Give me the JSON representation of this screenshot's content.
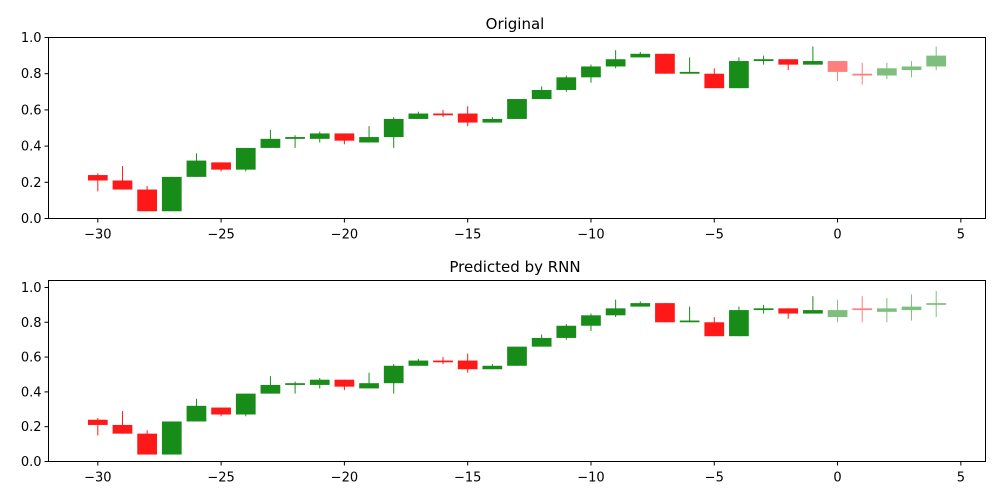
{
  "chart_data": [
    {
      "type": "candlestick",
      "title": "Original",
      "xlabel": "",
      "ylabel": "",
      "xlim": [
        -32,
        6
      ],
      "ylim": [
        0,
        1.0
      ],
      "xticks": [
        -30,
        -25,
        -20,
        -15,
        -10,
        -5,
        0,
        5
      ],
      "yticks": [
        0.0,
        0.2,
        0.4,
        0.6,
        0.8,
        1.0
      ],
      "xtick_labels": [
        "−30",
        "−25",
        "−20",
        "−15",
        "−10",
        "−5",
        "0",
        "5"
      ],
      "ytick_labels": [
        "0.0",
        "0.2",
        "0.4",
        "0.6",
        "0.8",
        "1.0"
      ],
      "grid": false,
      "colors": {
        "up": "#008000",
        "down": "#ff0000"
      },
      "candles": [
        {
          "x": -30,
          "open": 0.24,
          "close": 0.21,
          "high": 0.25,
          "low": 0.15,
          "alpha": 0.9
        },
        {
          "x": -29,
          "open": 0.21,
          "close": 0.16,
          "high": 0.29,
          "low": 0.16,
          "alpha": 0.9
        },
        {
          "x": -28,
          "open": 0.16,
          "close": 0.04,
          "high": 0.18,
          "low": 0.04,
          "alpha": 0.9
        },
        {
          "x": -27,
          "open": 0.04,
          "close": 0.23,
          "high": 0.23,
          "low": 0.04,
          "alpha": 0.9
        },
        {
          "x": -26,
          "open": 0.23,
          "close": 0.32,
          "high": 0.36,
          "low": 0.23,
          "alpha": 0.9
        },
        {
          "x": -25,
          "open": 0.31,
          "close": 0.27,
          "high": 0.31,
          "low": 0.26,
          "alpha": 0.9
        },
        {
          "x": -24,
          "open": 0.27,
          "close": 0.39,
          "high": 0.39,
          "low": 0.26,
          "alpha": 0.9
        },
        {
          "x": -23,
          "open": 0.39,
          "close": 0.44,
          "high": 0.49,
          "low": 0.39,
          "alpha": 0.9
        },
        {
          "x": -22,
          "open": 0.44,
          "close": 0.45,
          "high": 0.46,
          "low": 0.39,
          "alpha": 0.9
        },
        {
          "x": -21,
          "open": 0.44,
          "close": 0.47,
          "high": 0.48,
          "low": 0.42,
          "alpha": 0.9
        },
        {
          "x": -20,
          "open": 0.47,
          "close": 0.43,
          "high": 0.47,
          "low": 0.41,
          "alpha": 0.9
        },
        {
          "x": -19,
          "open": 0.42,
          "close": 0.45,
          "high": 0.51,
          "low": 0.42,
          "alpha": 0.9
        },
        {
          "x": -18,
          "open": 0.45,
          "close": 0.55,
          "high": 0.56,
          "low": 0.39,
          "alpha": 0.9
        },
        {
          "x": -17,
          "open": 0.55,
          "close": 0.58,
          "high": 0.59,
          "low": 0.55,
          "alpha": 0.9
        },
        {
          "x": -16,
          "open": 0.58,
          "close": 0.57,
          "high": 0.6,
          "low": 0.56,
          "alpha": 0.9
        },
        {
          "x": -15,
          "open": 0.58,
          "close": 0.53,
          "high": 0.62,
          "low": 0.51,
          "alpha": 0.9
        },
        {
          "x": -14,
          "open": 0.53,
          "close": 0.55,
          "high": 0.56,
          "low": 0.53,
          "alpha": 0.9
        },
        {
          "x": -13,
          "open": 0.55,
          "close": 0.66,
          "high": 0.66,
          "low": 0.55,
          "alpha": 0.9
        },
        {
          "x": -12,
          "open": 0.66,
          "close": 0.71,
          "high": 0.73,
          "low": 0.66,
          "alpha": 0.9
        },
        {
          "x": -11,
          "open": 0.71,
          "close": 0.78,
          "high": 0.79,
          "low": 0.7,
          "alpha": 0.9
        },
        {
          "x": -10,
          "open": 0.78,
          "close": 0.84,
          "high": 0.85,
          "low": 0.75,
          "alpha": 0.9
        },
        {
          "x": -9,
          "open": 0.84,
          "close": 0.88,
          "high": 0.93,
          "low": 0.83,
          "alpha": 0.9
        },
        {
          "x": -8,
          "open": 0.89,
          "close": 0.91,
          "high": 0.92,
          "low": 0.89,
          "alpha": 0.9
        },
        {
          "x": -7,
          "open": 0.91,
          "close": 0.8,
          "high": 0.91,
          "low": 0.8,
          "alpha": 0.9
        },
        {
          "x": -6,
          "open": 0.8,
          "close": 0.81,
          "high": 0.89,
          "low": 0.8,
          "alpha": 0.9
        },
        {
          "x": -5,
          "open": 0.8,
          "close": 0.72,
          "high": 0.83,
          "low": 0.72,
          "alpha": 0.9
        },
        {
          "x": -4,
          "open": 0.72,
          "close": 0.87,
          "high": 0.89,
          "low": 0.72,
          "alpha": 0.9
        },
        {
          "x": -3,
          "open": 0.87,
          "close": 0.88,
          "high": 0.9,
          "low": 0.85,
          "alpha": 0.9
        },
        {
          "x": -2,
          "open": 0.88,
          "close": 0.85,
          "high": 0.88,
          "low": 0.82,
          "alpha": 0.9
        },
        {
          "x": -1,
          "open": 0.85,
          "close": 0.87,
          "high": 0.95,
          "low": 0.85,
          "alpha": 0.9
        },
        {
          "x": 0,
          "open": 0.87,
          "close": 0.81,
          "high": 0.87,
          "low": 0.76,
          "alpha": 0.5
        },
        {
          "x": 1,
          "open": 0.8,
          "close": 0.79,
          "high": 0.86,
          "low": 0.74,
          "alpha": 0.5
        },
        {
          "x": 2,
          "open": 0.79,
          "close": 0.83,
          "high": 0.86,
          "low": 0.77,
          "alpha": 0.5
        },
        {
          "x": 3,
          "open": 0.82,
          "close": 0.84,
          "high": 0.87,
          "low": 0.78,
          "alpha": 0.5
        },
        {
          "x": 4,
          "open": 0.84,
          "close": 0.9,
          "high": 0.95,
          "low": 0.82,
          "alpha": 0.5
        }
      ]
    },
    {
      "type": "candlestick",
      "title": "Predicted by RNN",
      "xlabel": "",
      "ylabel": "",
      "xlim": [
        -32,
        6
      ],
      "ylim": [
        0,
        1.04
      ],
      "xticks": [
        -30,
        -25,
        -20,
        -15,
        -10,
        -5,
        0,
        5
      ],
      "yticks": [
        0.0,
        0.2,
        0.4,
        0.6,
        0.8,
        1.0
      ],
      "xtick_labels": [
        "−30",
        "−25",
        "−20",
        "−15",
        "−10",
        "−5",
        "0",
        "5"
      ],
      "ytick_labels": [
        "0.0",
        "0.2",
        "0.4",
        "0.6",
        "0.8",
        "1.0"
      ],
      "grid": false,
      "colors": {
        "up": "#008000",
        "down": "#ff0000"
      },
      "candles": [
        {
          "x": -30,
          "open": 0.24,
          "close": 0.21,
          "high": 0.25,
          "low": 0.15,
          "alpha": 0.9
        },
        {
          "x": -29,
          "open": 0.21,
          "close": 0.16,
          "high": 0.29,
          "low": 0.16,
          "alpha": 0.9
        },
        {
          "x": -28,
          "open": 0.16,
          "close": 0.04,
          "high": 0.18,
          "low": 0.04,
          "alpha": 0.9
        },
        {
          "x": -27,
          "open": 0.04,
          "close": 0.23,
          "high": 0.23,
          "low": 0.04,
          "alpha": 0.9
        },
        {
          "x": -26,
          "open": 0.23,
          "close": 0.32,
          "high": 0.36,
          "low": 0.23,
          "alpha": 0.9
        },
        {
          "x": -25,
          "open": 0.31,
          "close": 0.27,
          "high": 0.31,
          "low": 0.26,
          "alpha": 0.9
        },
        {
          "x": -24,
          "open": 0.27,
          "close": 0.39,
          "high": 0.39,
          "low": 0.26,
          "alpha": 0.9
        },
        {
          "x": -23,
          "open": 0.39,
          "close": 0.44,
          "high": 0.49,
          "low": 0.39,
          "alpha": 0.9
        },
        {
          "x": -22,
          "open": 0.44,
          "close": 0.45,
          "high": 0.46,
          "low": 0.39,
          "alpha": 0.9
        },
        {
          "x": -21,
          "open": 0.44,
          "close": 0.47,
          "high": 0.48,
          "low": 0.42,
          "alpha": 0.9
        },
        {
          "x": -20,
          "open": 0.47,
          "close": 0.43,
          "high": 0.47,
          "low": 0.41,
          "alpha": 0.9
        },
        {
          "x": -19,
          "open": 0.42,
          "close": 0.45,
          "high": 0.51,
          "low": 0.42,
          "alpha": 0.9
        },
        {
          "x": -18,
          "open": 0.45,
          "close": 0.55,
          "high": 0.56,
          "low": 0.39,
          "alpha": 0.9
        },
        {
          "x": -17,
          "open": 0.55,
          "close": 0.58,
          "high": 0.59,
          "low": 0.55,
          "alpha": 0.9
        },
        {
          "x": -16,
          "open": 0.58,
          "close": 0.57,
          "high": 0.6,
          "low": 0.56,
          "alpha": 0.9
        },
        {
          "x": -15,
          "open": 0.58,
          "close": 0.53,
          "high": 0.62,
          "low": 0.51,
          "alpha": 0.9
        },
        {
          "x": -14,
          "open": 0.53,
          "close": 0.55,
          "high": 0.56,
          "low": 0.53,
          "alpha": 0.9
        },
        {
          "x": -13,
          "open": 0.55,
          "close": 0.66,
          "high": 0.66,
          "low": 0.55,
          "alpha": 0.9
        },
        {
          "x": -12,
          "open": 0.66,
          "close": 0.71,
          "high": 0.73,
          "low": 0.66,
          "alpha": 0.9
        },
        {
          "x": -11,
          "open": 0.71,
          "close": 0.78,
          "high": 0.79,
          "low": 0.7,
          "alpha": 0.9
        },
        {
          "x": -10,
          "open": 0.78,
          "close": 0.84,
          "high": 0.85,
          "low": 0.75,
          "alpha": 0.9
        },
        {
          "x": -9,
          "open": 0.84,
          "close": 0.88,
          "high": 0.93,
          "low": 0.83,
          "alpha": 0.9
        },
        {
          "x": -8,
          "open": 0.89,
          "close": 0.91,
          "high": 0.92,
          "low": 0.89,
          "alpha": 0.9
        },
        {
          "x": -7,
          "open": 0.91,
          "close": 0.8,
          "high": 0.91,
          "low": 0.8,
          "alpha": 0.9
        },
        {
          "x": -6,
          "open": 0.8,
          "close": 0.81,
          "high": 0.89,
          "low": 0.8,
          "alpha": 0.9
        },
        {
          "x": -5,
          "open": 0.8,
          "close": 0.72,
          "high": 0.83,
          "low": 0.72,
          "alpha": 0.9
        },
        {
          "x": -4,
          "open": 0.72,
          "close": 0.87,
          "high": 0.89,
          "low": 0.72,
          "alpha": 0.9
        },
        {
          "x": -3,
          "open": 0.87,
          "close": 0.88,
          "high": 0.9,
          "low": 0.85,
          "alpha": 0.9
        },
        {
          "x": -2,
          "open": 0.88,
          "close": 0.85,
          "high": 0.88,
          "low": 0.82,
          "alpha": 0.9
        },
        {
          "x": -1,
          "open": 0.85,
          "close": 0.87,
          "high": 0.95,
          "low": 0.85,
          "alpha": 0.9
        },
        {
          "x": 0,
          "open": 0.83,
          "close": 0.87,
          "high": 0.93,
          "low": 0.8,
          "alpha": 0.5
        },
        {
          "x": 1,
          "open": 0.88,
          "close": 0.87,
          "high": 0.95,
          "low": 0.8,
          "alpha": 0.5
        },
        {
          "x": 2,
          "open": 0.86,
          "close": 0.88,
          "high": 0.94,
          "low": 0.8,
          "alpha": 0.5
        },
        {
          "x": 3,
          "open": 0.87,
          "close": 0.89,
          "high": 0.96,
          "low": 0.81,
          "alpha": 0.5
        },
        {
          "x": 4,
          "open": 0.9,
          "close": 0.91,
          "high": 0.98,
          "low": 0.83,
          "alpha": 0.5
        }
      ]
    }
  ]
}
